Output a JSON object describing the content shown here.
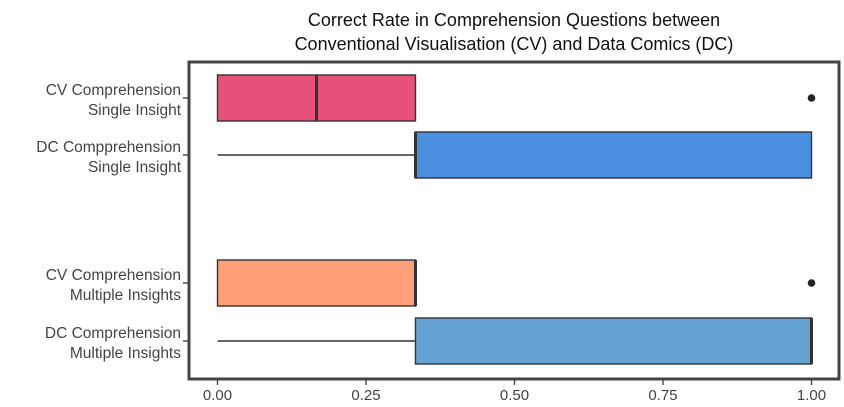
{
  "chart_data": {
    "type": "boxplot",
    "orientation": "horizontal",
    "title_lines": [
      "Correct Rate in Comprehension Questions between",
      "Conventional Visualisation (CV) and Data Comics (DC)"
    ],
    "xlabel": "",
    "ylabel": "",
    "xlim": [
      -0.05,
      1.05
    ],
    "x_ticks": [
      0.0,
      0.25,
      0.5,
      0.75,
      1.0
    ],
    "x_tick_labels": [
      "0.00",
      "0.25",
      "0.50",
      "0.75",
      "1.00"
    ],
    "grid": false,
    "legend": "none",
    "categories": [
      {
        "label_lines": [
          "CV Comprehension",
          "Single Insight"
        ],
        "whisker_low": 0.0,
        "q1": 0.0,
        "median": 0.1667,
        "q3": 0.3333,
        "whisker_high": 0.3333,
        "outliers": [
          1.0
        ],
        "color": "#E8527A"
      },
      {
        "label_lines": [
          "DC Compprehension",
          "Single Insight"
        ],
        "whisker_low": 0.0,
        "q1": 0.3333,
        "median": 0.3333,
        "q3": 1.0,
        "whisker_high": 1.0,
        "outliers": [],
        "color": "#4A8FE0"
      },
      {
        "label_lines": [
          "CV Comprehension",
          "Multiple Insights"
        ],
        "whisker_low": 0.0,
        "q1": 0.0,
        "median": 0.3333,
        "q3": 0.3333,
        "whisker_high": 0.3333,
        "outliers": [
          1.0
        ],
        "color": "#FFA07A"
      },
      {
        "label_lines": [
          "DC Comprehension",
          "Multiple Insights"
        ],
        "whisker_low": 0.0,
        "q1": 0.3333,
        "median": 1.0,
        "q3": 1.0,
        "whisker_high": 1.0,
        "outliers": [],
        "color": "#66A3D2"
      }
    ]
  }
}
